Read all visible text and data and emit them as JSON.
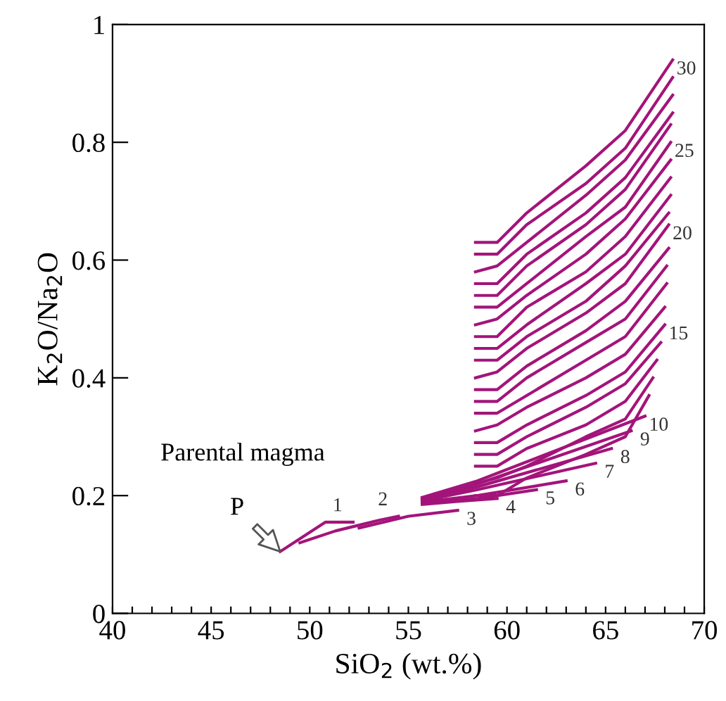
{
  "chart_data": {
    "type": "line",
    "xlabel": "SiO$_{2}$ (wt.%)",
    "ylabel": "K$_{2}$O/Na$_{2}$O",
    "xlim": [
      40,
      70
    ],
    "ylim": [
      0,
      1
    ],
    "xticks": [
      40,
      {
        "value": 41,
        "label": null
      },
      {
        "value": 42,
        "label": null
      },
      {
        "value": 43,
        "label": null
      },
      {
        "value": 44,
        "label": null
      },
      45,
      {
        "value": 46,
        "label": null
      },
      {
        "value": 47,
        "label": null
      },
      {
        "value": 48,
        "label": null
      },
      {
        "value": 49,
        "label": null
      },
      50,
      {
        "value": 51,
        "label": null
      },
      {
        "value": 52,
        "label": null
      },
      {
        "value": 53,
        "label": null
      },
      {
        "value": 54,
        "label": null
      },
      55,
      {
        "value": 56,
        "label": null
      },
      {
        "value": 57,
        "label": null
      },
      {
        "value": 58,
        "label": null
      },
      {
        "value": 59,
        "label": null
      },
      60,
      {
        "value": 61,
        "label": null
      },
      {
        "value": 62,
        "label": null
      },
      {
        "value": 63,
        "label": null
      },
      {
        "value": 64,
        "label": null
      },
      65,
      {
        "value": 66,
        "label": null
      },
      {
        "value": 67,
        "label": null
      },
      {
        "value": 68,
        "label": null
      },
      {
        "value": 69,
        "label": null
      },
      70
    ],
    "yticks": [
      0,
      0.2,
      0.4,
      0.6,
      0.8,
      1
    ],
    "grid": false,
    "legend": false,
    "marker": "none",
    "line_style": "solid",
    "series": [
      {
        "name": "1",
        "color": "#a3147a",
        "x": [
          48.5,
          50.8,
          52.2
        ],
        "values": [
          0.105,
          0.155,
          0.155
        ]
      },
      {
        "name": "2",
        "color": "#a3147a",
        "x": [
          49.5,
          51.3,
          53.5,
          54.5
        ],
        "values": [
          0.12,
          0.14,
          0.158,
          0.165
        ]
      },
      {
        "name": "3",
        "color": "#a3147a",
        "x": [
          52.5,
          55,
          57.5
        ],
        "values": [
          0.145,
          0.165,
          0.175
        ]
      },
      {
        "name": "4",
        "color": "#a3147a",
        "x": [
          55.7,
          57.5,
          59.5
        ],
        "values": [
          0.185,
          0.19,
          0.195
        ]
      },
      {
        "name": "5",
        "color": "#a3147a",
        "x": [
          55.7,
          58.5,
          61.5
        ],
        "values": [
          0.187,
          0.195,
          0.21
        ]
      },
      {
        "name": "6",
        "color": "#a3147a",
        "x": [
          55.7,
          58.5,
          63
        ],
        "values": [
          0.189,
          0.2,
          0.225
        ]
      },
      {
        "name": "7",
        "color": "#a3147a",
        "x": [
          55.7,
          58.5,
          64.5
        ],
        "values": [
          0.191,
          0.21,
          0.255
        ]
      },
      {
        "name": "8",
        "color": "#a3147a",
        "x": [
          55.7,
          58.5,
          65.3
        ],
        "values": [
          0.193,
          0.215,
          0.28
        ]
      },
      {
        "name": "9",
        "color": "#a3147a",
        "x": [
          55.7,
          58.5,
          66.3
        ],
        "values": [
          0.195,
          0.22,
          0.31
        ]
      },
      {
        "name": "10",
        "color": "#a3147a",
        "x": [
          55.7,
          58.5,
          67
        ],
        "values": [
          0.197,
          0.225,
          0.335
        ]
      },
      {
        "color": "#a3147a",
        "x": [
          58.4,
          59.5,
          61,
          64,
          66,
          67.2
        ],
        "values": [
          0.2,
          0.2,
          0.23,
          0.27,
          0.3,
          0.37
        ]
      },
      {
        "color": "#a3147a",
        "x": [
          58.4,
          59.5,
          61,
          64,
          66,
          67.4
        ],
        "values": [
          0.22,
          0.23,
          0.25,
          0.3,
          0.33,
          0.4
        ]
      },
      {
        "color": "#a3147a",
        "x": [
          58.4,
          59.5,
          61,
          64,
          66,
          67.6
        ],
        "values": [
          0.25,
          0.25,
          0.28,
          0.32,
          0.36,
          0.43
        ]
      },
      {
        "color": "#a3147a",
        "x": [
          58.4,
          59.5,
          61,
          64,
          66,
          67.8
        ],
        "values": [
          0.27,
          0.27,
          0.3,
          0.35,
          0.39,
          0.46
        ]
      },
      {
        "name": "15",
        "color": "#a3147a",
        "x": [
          58.4,
          59.5,
          61,
          64,
          66,
          68
        ],
        "values": [
          0.29,
          0.29,
          0.32,
          0.37,
          0.41,
          0.49
        ]
      },
      {
        "color": "#a3147a",
        "x": [
          58.4,
          59.5,
          61,
          64,
          66,
          68
        ],
        "values": [
          0.31,
          0.32,
          0.35,
          0.4,
          0.44,
          0.52
        ]
      },
      {
        "color": "#a3147a",
        "x": [
          58.4,
          59.5,
          61,
          64,
          66,
          68.1
        ],
        "values": [
          0.34,
          0.34,
          0.37,
          0.43,
          0.47,
          0.56
        ]
      },
      {
        "color": "#a3147a",
        "x": [
          58.4,
          59.5,
          61,
          64,
          66,
          68.1
        ],
        "values": [
          0.36,
          0.36,
          0.4,
          0.46,
          0.5,
          0.59
        ]
      },
      {
        "color": "#a3147a",
        "x": [
          58.4,
          59.5,
          61,
          64,
          66,
          68.2
        ],
        "values": [
          0.38,
          0.38,
          0.42,
          0.48,
          0.53,
          0.62
        ]
      },
      {
        "name": "20",
        "color": "#a3147a",
        "x": [
          58.4,
          59.5,
          61,
          64,
          66,
          68.2
        ],
        "values": [
          0.4,
          0.41,
          0.45,
          0.51,
          0.56,
          0.66
        ]
      },
      {
        "color": "#a3147a",
        "x": [
          58.4,
          59.5,
          61,
          64,
          66,
          68.2
        ],
        "values": [
          0.43,
          0.43,
          0.47,
          0.53,
          0.59,
          0.68
        ]
      },
      {
        "color": "#a3147a",
        "x": [
          58.4,
          59.5,
          61,
          64,
          66,
          68.3
        ],
        "values": [
          0.45,
          0.45,
          0.49,
          0.56,
          0.61,
          0.71
        ]
      },
      {
        "color": "#a3147a",
        "x": [
          58.4,
          59.5,
          61,
          64,
          66,
          68.3
        ],
        "values": [
          0.47,
          0.47,
          0.52,
          0.58,
          0.64,
          0.74
        ]
      },
      {
        "color": "#a3147a",
        "x": [
          58.4,
          59.5,
          61,
          64,
          66,
          68.3
        ],
        "values": [
          0.49,
          0.5,
          0.54,
          0.61,
          0.67,
          0.77
        ]
      },
      {
        "name": "25",
        "color": "#a3147a",
        "x": [
          58.4,
          59.5,
          61,
          64,
          66,
          68.3
        ],
        "values": [
          0.52,
          0.52,
          0.56,
          0.64,
          0.69,
          0.8
        ]
      },
      {
        "color": "#a3147a",
        "x": [
          58.4,
          59.5,
          61,
          64,
          66,
          68.3
        ],
        "values": [
          0.54,
          0.54,
          0.59,
          0.66,
          0.72,
          0.83
        ]
      },
      {
        "color": "#a3147a",
        "x": [
          58.4,
          59.5,
          61,
          64,
          66,
          68.4
        ],
        "values": [
          0.56,
          0.56,
          0.61,
          0.68,
          0.74,
          0.85
        ]
      },
      {
        "color": "#a3147a",
        "x": [
          58.4,
          59.5,
          61,
          64,
          66,
          68.4
        ],
        "values": [
          0.58,
          0.59,
          0.63,
          0.71,
          0.77,
          0.88
        ]
      },
      {
        "color": "#a3147a",
        "x": [
          58.4,
          59.5,
          61,
          64,
          66,
          68.4
        ],
        "values": [
          0.61,
          0.61,
          0.66,
          0.73,
          0.79,
          0.91
        ]
      },
      {
        "name": "30",
        "color": "#a3147a",
        "x": [
          58.4,
          59.5,
          61,
          64,
          66,
          68.4
        ],
        "values": [
          0.63,
          0.63,
          0.68,
          0.76,
          0.82,
          0.94
        ]
      }
    ],
    "annotations": [
      {
        "text": "P",
        "x": 48.5,
        "y": 0.105
      },
      "Parental magma"
    ]
  }
}
